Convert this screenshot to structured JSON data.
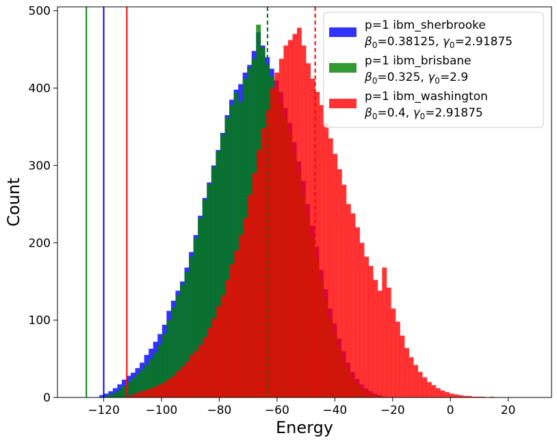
{
  "chart_data": {
    "type": "histogram",
    "title": "",
    "xlabel": "Energy",
    "ylabel": "Count",
    "xlim": [
      -136,
      35
    ],
    "ylim": [
      0,
      505
    ],
    "xticks": [
      -120,
      -100,
      -80,
      -60,
      -40,
      -20,
      0,
      20
    ],
    "xtick_labels": [
      "−120",
      "−100",
      "−80",
      "−60",
      "−40",
      "−20",
      "0",
      "20"
    ],
    "yticks": [
      0,
      100,
      200,
      300,
      400,
      500
    ],
    "ytick_labels": [
      "0",
      "100",
      "200",
      "300",
      "400",
      "500"
    ],
    "grid": false,
    "legend_position": "top-right",
    "series": [
      {
        "name": "p=1 ibm_sherbrooke",
        "params": {
          "beta_label": "β",
          "beta_value": "=0.38125",
          "gamma_label": "γ",
          "gamma_value": "=2.91875"
        },
        "color": "#0000ff",
        "alpha": 0.8,
        "bin_start": -121.5,
        "bin_width": 1.55,
        "counts": [
          3,
          5,
          8,
          12,
          17,
          23,
          28,
          32,
          38,
          45,
          55,
          63,
          72,
          82,
          94,
          112,
          125,
          138,
          150,
          168,
          188,
          210,
          235,
          258,
          278,
          300,
          320,
          342,
          365,
          385,
          398,
          405,
          420,
          430,
          448,
          472,
          455,
          440,
          425,
          410,
          395,
          374,
          355,
          330,
          305,
          280,
          250,
          222,
          195,
          165,
          140,
          115,
          96,
          76,
          60,
          45,
          33,
          24,
          17,
          12,
          8,
          5,
          3,
          1
        ],
        "min_line": -120,
        "mean_line": -63.3
      },
      {
        "name": "p=1 ibm_brisbane",
        "params": {
          "beta_label": "β",
          "beta_value": "=0.325",
          "gamma_label": "γ",
          "gamma_value": "=2.9"
        },
        "color": "#008000",
        "alpha": 0.8,
        "bin_start": -121.5,
        "bin_width": 1.55,
        "counts": [
          0,
          2,
          4,
          6,
          10,
          15,
          20,
          25,
          30,
          36,
          42,
          50,
          58,
          68,
          82,
          100,
          116,
          132,
          146,
          162,
          182,
          206,
          232,
          256,
          276,
          298,
          318,
          340,
          362,
          378,
          394,
          382,
          412,
          426,
          438,
          482,
          452,
          430,
          415,
          398,
          380,
          362,
          342,
          316,
          290,
          262,
          236,
          208,
          180,
          152,
          126,
          102,
          82,
          64,
          48,
          36,
          26,
          18,
          12,
          8,
          5,
          3,
          1,
          0
        ],
        "min_line": -126,
        "mean_line": -63.3
      },
      {
        "name": "p=1 ibm_washington",
        "params": {
          "beta_label": "β",
          "beta_value": "=0.4",
          "gamma_label": "γ",
          "gamma_value": "=2.91875"
        },
        "color": "#ff0000",
        "alpha": 0.8,
        "bin_start": -112,
        "bin_width": 1.55,
        "counts": [
          2,
          4,
          6,
          8,
          10,
          12,
          14,
          17,
          20,
          24,
          28,
          34,
          40,
          46,
          55,
          60,
          68,
          78,
          90,
          102,
          118,
          132,
          152,
          172,
          190,
          210,
          232,
          262,
          290,
          320,
          348,
          372,
          400,
          420,
          438,
          455,
          462,
          470,
          478,
          455,
          432,
          412,
          395,
          378,
          355,
          335,
          315,
          295,
          275,
          250,
          238,
          220,
          200,
          182,
          170,
          152,
          138,
          168,
          142,
          115,
          98,
          80,
          64,
          52,
          42,
          33,
          26,
          20,
          16,
          12,
          9,
          7,
          5,
          4,
          3,
          2,
          2,
          1,
          1,
          1,
          0,
          1
        ],
        "min_line": -112,
        "mean_line": -46.8
      }
    ]
  }
}
